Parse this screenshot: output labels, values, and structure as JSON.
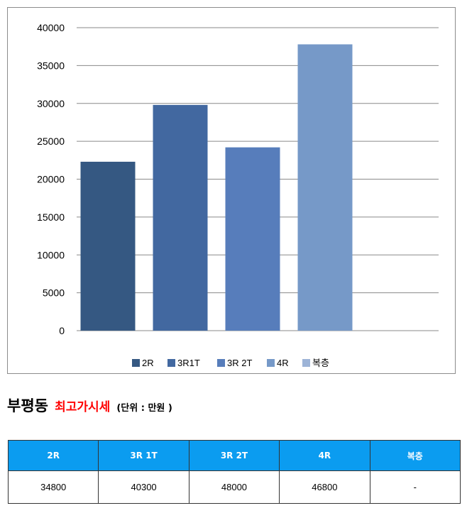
{
  "chart_data": {
    "type": "bar",
    "categories": [
      "2R",
      "3R1T",
      "3R 2T",
      "4R",
      "복층"
    ],
    "values": [
      22300,
      29800,
      24200,
      37800,
      null
    ],
    "colors": [
      "#355882",
      "#4268a0",
      "#577dbb",
      "#7699c8",
      "#9db4d7"
    ],
    "ylim": [
      0,
      40000
    ],
    "yticks": [
      0,
      5000,
      10000,
      15000,
      20000,
      25000,
      30000,
      35000,
      40000
    ],
    "grid": true,
    "legend_position": "bottom"
  },
  "heading": {
    "place": "부평동",
    "title": "최고가시세",
    "unit": "(단위 : 만원 )"
  },
  "table": {
    "headers": [
      "2R",
      "3R 1T",
      "3R 2T",
      "4R",
      "복층"
    ],
    "rows": [
      [
        "34800",
        "40300",
        "48000",
        "46800",
        "-"
      ]
    ]
  }
}
